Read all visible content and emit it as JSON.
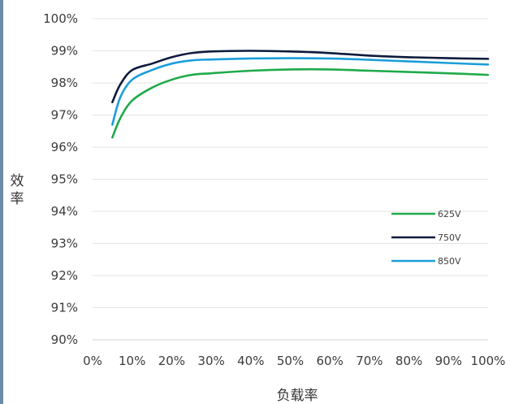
{
  "chart_data": {
    "type": "line",
    "title": "",
    "xlabel": "负载率",
    "ylabel": "效率",
    "xlim": [
      0,
      100
    ],
    "ylim": [
      90,
      100
    ],
    "x_ticks": [
      0,
      10,
      20,
      30,
      40,
      50,
      60,
      70,
      80,
      90,
      100
    ],
    "x_tick_labels": [
      "0%",
      "10%",
      "20%",
      "30%",
      "40%",
      "50%",
      "60%",
      "70%",
      "80%",
      "90%",
      "100%"
    ],
    "y_ticks": [
      90,
      91,
      92,
      93,
      94,
      95,
      96,
      97,
      98,
      99,
      100
    ],
    "y_tick_labels": [
      "90%",
      "91%",
      "92%",
      "93%",
      "94%",
      "95%",
      "96%",
      "97%",
      "98%",
      "99%",
      "100%"
    ],
    "grid": "horizontal",
    "legend_position": "right",
    "series": [
      {
        "name": "625V",
        "color": "#1faa4a",
        "x": [
          5,
          7,
          10,
          15,
          20,
          25,
          30,
          40,
          50,
          60,
          70,
          80,
          90,
          100
        ],
        "y": [
          96.3,
          96.9,
          97.45,
          97.85,
          98.1,
          98.25,
          98.3,
          98.38,
          98.42,
          98.42,
          98.38,
          98.34,
          98.3,
          98.25
        ]
      },
      {
        "name": "750V",
        "color": "#0d1b3d",
        "x": [
          5,
          7,
          10,
          15,
          20,
          25,
          30,
          40,
          50,
          60,
          70,
          80,
          90,
          100
        ],
        "y": [
          97.4,
          97.95,
          98.4,
          98.6,
          98.8,
          98.93,
          98.98,
          99.0,
          98.98,
          98.93,
          98.85,
          98.8,
          98.77,
          98.75
        ]
      },
      {
        "name": "850V",
        "color": "#1a9ed9",
        "x": [
          5,
          7,
          10,
          15,
          20,
          25,
          30,
          40,
          50,
          60,
          70,
          80,
          90,
          100
        ],
        "y": [
          96.7,
          97.55,
          98.1,
          98.4,
          98.6,
          98.7,
          98.73,
          98.76,
          98.77,
          98.76,
          98.72,
          98.67,
          98.62,
          98.57
        ]
      }
    ]
  }
}
